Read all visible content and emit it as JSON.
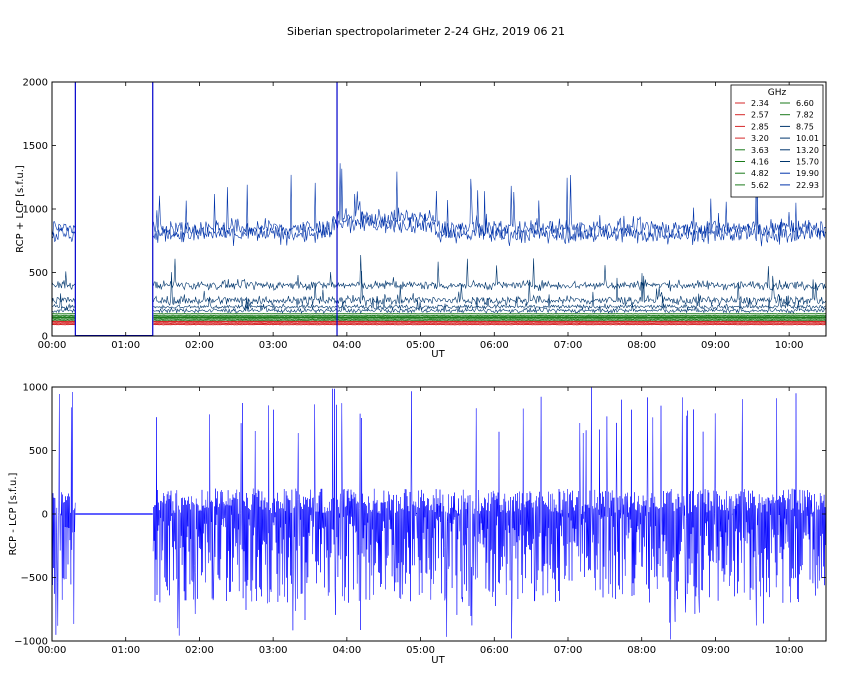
{
  "figure_title": "Siberian spectropolarimeter 2-24 GHz, 2019 06 21",
  "colors": {
    "frame": "#000000",
    "mask_border": "#0000cc",
    "lowfreq_red": "#d62728",
    "midfreq_green": "#1a7a1a",
    "highfreq_navy": "#00366d",
    "top_bright_blue": "#0033aa",
    "diff_blue": "#0000ff"
  },
  "chart_data": [
    {
      "type": "line",
      "panel": "top",
      "xlabel": "UT",
      "ylabel": "RCP + LCP [s.f.u.]",
      "xlim": [
        "00:00",
        "10:30"
      ],
      "ylim": [
        0,
        2000
      ],
      "x_ticks": [
        "00:00",
        "01:00",
        "02:00",
        "03:00",
        "04:00",
        "05:00",
        "06:00",
        "07:00",
        "08:00",
        "09:00",
        "10:00"
      ],
      "y_ticks": [
        "0",
        "500",
        "1000",
        "1500",
        "2000"
      ],
      "legend": {
        "title": "GHz",
        "placement": "top-right",
        "entries": [
          "2.34",
          "2.57",
          "2.85",
          "3.20",
          "3.63",
          "4.16",
          "4.82",
          "5.62",
          "6.60",
          "7.82",
          "8.75",
          "10.01",
          "13.20",
          "15.70",
          "19.90",
          "22.93"
        ]
      },
      "gap": {
        "start": "00:19",
        "end": "01:22"
      },
      "series_levels": [
        {
          "name": "2.34",
          "level": 90
        },
        {
          "name": "2.57",
          "level": 100
        },
        {
          "name": "2.85",
          "level": 110
        },
        {
          "name": "3.20",
          "level": 115
        },
        {
          "name": "3.63",
          "level": 125
        },
        {
          "name": "4.16",
          "level": 135
        },
        {
          "name": "4.82",
          "level": 145
        },
        {
          "name": "5.62",
          "level": 150
        },
        {
          "name": "6.60",
          "level": 160
        },
        {
          "name": "7.82",
          "level": 175
        },
        {
          "name": "8.75",
          "level": 200
        },
        {
          "name": "10.01",
          "level": 230
        },
        {
          "name": "13.20",
          "level": 280
        },
        {
          "name": "15.70",
          "level": 400
        },
        {
          "name": "19.90",
          "level": 800
        },
        {
          "name": "22.93",
          "level": 850
        }
      ]
    },
    {
      "type": "line",
      "panel": "bottom",
      "xlabel": "UT",
      "ylabel": "RCP - LCP [s.f.u.]",
      "xlim": [
        "00:00",
        "10:30"
      ],
      "ylim": [
        -1000,
        1000
      ],
      "x_ticks": [
        "00:00",
        "01:00",
        "02:00",
        "03:00",
        "04:00",
        "05:00",
        "06:00",
        "07:00",
        "08:00",
        "09:00",
        "10:00"
      ],
      "y_ticks": [
        "1000",
        "500",
        "0",
        "−500",
        "−1000"
      ],
      "gap": {
        "start": "00:19",
        "end": "01:22"
      },
      "noise_band": [
        -700,
        200
      ]
    }
  ]
}
